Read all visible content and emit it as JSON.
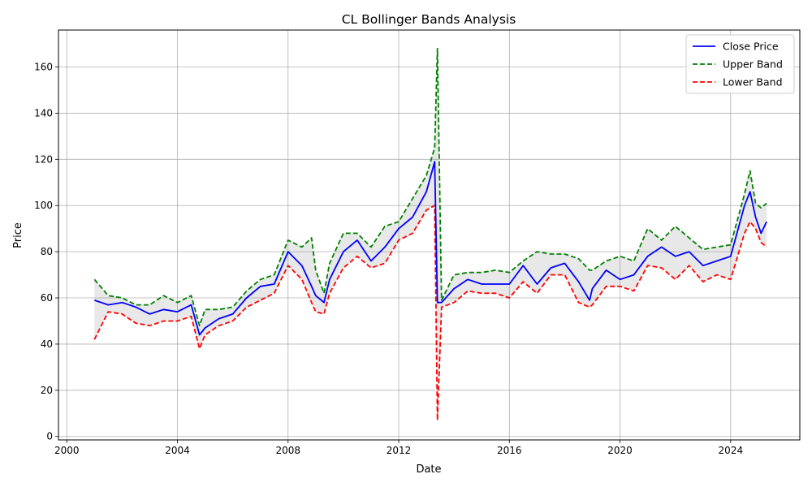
{
  "chart_data": {
    "type": "line",
    "title": "CL Bollinger Bands Analysis",
    "xlabel": "Date",
    "ylabel": "Price",
    "xlim": [
      1999.7,
      2026.5
    ],
    "ylim": [
      -1.5,
      176
    ],
    "grid": true,
    "legend_position": "top-right",
    "x_ticks": [
      2000,
      2004,
      2008,
      2012,
      2016,
      2020,
      2024
    ],
    "x_tick_labels": [
      "2000",
      "2004",
      "2008",
      "2012",
      "2016",
      "2020",
      "2024"
    ],
    "y_ticks": [
      0,
      20,
      40,
      60,
      80,
      100,
      120,
      140,
      160
    ],
    "y_tick_labels": [
      "0",
      "20",
      "40",
      "60",
      "80",
      "100",
      "120",
      "140",
      "160"
    ],
    "x": [
      2001.0,
      2001.5,
      2002.0,
      2002.5,
      2003.0,
      2003.5,
      2004.0,
      2004.5,
      2004.8,
      2005.0,
      2005.5,
      2006.0,
      2006.5,
      2007.0,
      2007.5,
      2008.0,
      2008.5,
      2008.85,
      2009.0,
      2009.3,
      2009.5,
      2010.0,
      2010.5,
      2011.0,
      2011.5,
      2012.0,
      2012.5,
      2013.0,
      2013.3,
      2013.4,
      2013.55,
      2014.0,
      2014.5,
      2015.0,
      2015.5,
      2016.0,
      2016.5,
      2017.0,
      2017.5,
      2018.0,
      2018.5,
      2018.9,
      2019.0,
      2019.5,
      2020.0,
      2020.5,
      2021.0,
      2021.5,
      2022.0,
      2022.5,
      2023.0,
      2023.5,
      2024.0,
      2024.5,
      2024.7,
      2024.9,
      2025.1,
      2025.3
    ],
    "series": [
      {
        "name": "Close Price",
        "color": "#0000ff",
        "dash": "solid",
        "values": [
          59,
          57,
          58,
          56,
          53,
          55,
          54,
          57,
          44,
          47,
          51,
          53,
          60,
          65,
          66,
          80,
          74,
          65,
          61,
          58,
          68,
          80,
          85,
          76,
          82,
          90,
          95,
          106,
          119,
          58,
          58,
          64,
          68,
          66,
          66,
          66,
          74,
          66,
          73,
          75,
          67,
          59,
          64,
          72,
          68,
          70,
          78,
          82,
          78,
          80,
          74,
          76,
          78,
          100,
          106,
          95,
          88,
          93
        ],
        "show_legend": true
      },
      {
        "name": "Upper Band",
        "color": "#008000",
        "dash": "dashed",
        "values": [
          68,
          61,
          60,
          57,
          57,
          61,
          58,
          61,
          48,
          55,
          55,
          56,
          63,
          68,
          70,
          85,
          82,
          86,
          72,
          62,
          75,
          88,
          88,
          82,
          91,
          93,
          103,
          113,
          125,
          168,
          59,
          70,
          71,
          71,
          72,
          71,
          76,
          80,
          79,
          79,
          77,
          72,
          72,
          76,
          78,
          76,
          90,
          85,
          91,
          86,
          81,
          82,
          83,
          105,
          115,
          101,
          99,
          101
        ],
        "show_legend": true
      },
      {
        "name": "Lower Band",
        "color": "#ff0000",
        "dash": "dashed",
        "values": [
          42,
          54,
          53,
          49,
          48,
          50,
          50,
          52,
          38,
          44,
          48,
          50,
          56,
          59,
          62,
          74,
          68,
          58,
          54,
          53,
          62,
          73,
          78,
          73,
          75,
          85,
          88,
          98,
          100,
          7,
          56,
          58,
          63,
          62,
          62,
          60,
          67,
          62,
          70,
          70,
          58,
          56,
          57,
          65,
          65,
          63,
          74,
          73,
          68,
          74,
          67,
          70,
          68,
          88,
          93,
          90,
          84,
          82
        ],
        "show_legend": true
      }
    ]
  }
}
